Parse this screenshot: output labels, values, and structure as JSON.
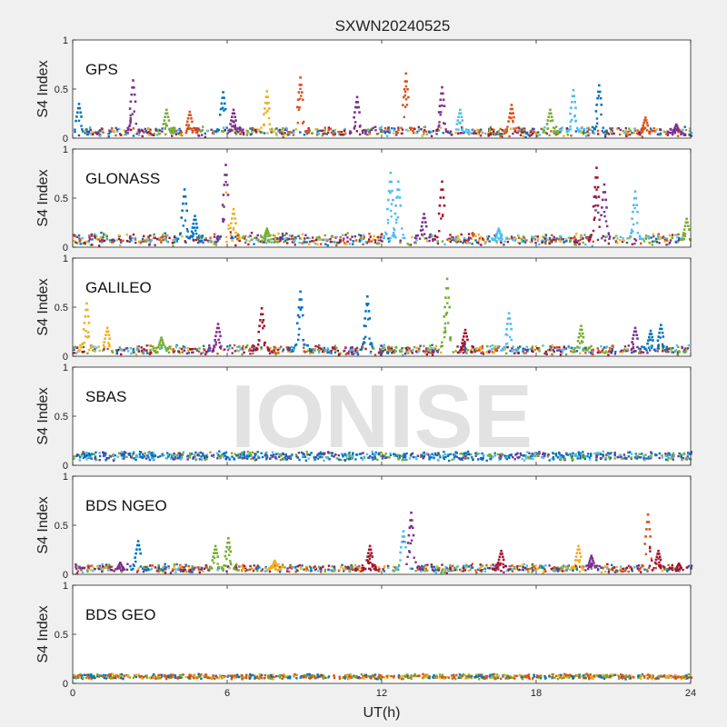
{
  "figure": {
    "title": "SXWN20240525",
    "watermark": "IONISE",
    "xlabel": "UT(h)",
    "xticks": [
      "0",
      "6",
      "12",
      "18",
      "24"
    ],
    "ylabel": "S4 Index"
  },
  "chart_data": [
    {
      "type": "scatter",
      "panel": "GPS",
      "xlim": [
        0,
        24
      ],
      "ylim": [
        0,
        1
      ],
      "ylabel": "S4 Index",
      "yticks": [
        "0",
        "0.5",
        "1"
      ],
      "baseline": [
        0.04,
        0.11
      ],
      "noise": 0.04,
      "spikes": [
        [
          0.2,
          0.36,
          0
        ],
        [
          2.3,
          0.6,
          3
        ],
        [
          3.6,
          0.3,
          4
        ],
        [
          4.5,
          0.28,
          1
        ],
        [
          5.8,
          0.48,
          0
        ],
        [
          6.2,
          0.3,
          3
        ],
        [
          7.5,
          0.49,
          2
        ],
        [
          8.8,
          0.63,
          1
        ],
        [
          11.0,
          0.43,
          3
        ],
        [
          12.9,
          0.67,
          1
        ],
        [
          14.3,
          0.53,
          3
        ],
        [
          15.0,
          0.3,
          5
        ],
        [
          17.0,
          0.35,
          1
        ],
        [
          18.5,
          0.3,
          4
        ],
        [
          19.4,
          0.5,
          5
        ],
        [
          20.4,
          0.55,
          0
        ],
        [
          22.2,
          0.22,
          1
        ],
        [
          23.4,
          0.15,
          3
        ]
      ],
      "colors": [
        "#0072BD",
        "#D95319",
        "#EDB120",
        "#7E2F8E",
        "#77AC30",
        "#4DBEEE",
        "#A2142F"
      ]
    },
    {
      "type": "scatter",
      "panel": "GLONASS",
      "xlim": [
        0,
        24
      ],
      "ylim": [
        0,
        1
      ],
      "ylabel": "S4 Index",
      "yticks": [
        "0",
        "0.5",
        "1"
      ],
      "baseline": [
        0.05,
        0.13
      ],
      "noise": 0.06,
      "spikes": [
        [
          4.3,
          0.6,
          0
        ],
        [
          4.7,
          0.33,
          0
        ],
        [
          5.9,
          0.85,
          3
        ],
        [
          6.2,
          0.4,
          2
        ],
        [
          7.5,
          0.2,
          4
        ],
        [
          12.3,
          0.77,
          5
        ],
        [
          12.6,
          0.68,
          5
        ],
        [
          13.6,
          0.35,
          3
        ],
        [
          14.3,
          0.68,
          6
        ],
        [
          16.5,
          0.2,
          5
        ],
        [
          20.3,
          0.82,
          6
        ],
        [
          20.6,
          0.65,
          3
        ],
        [
          21.8,
          0.58,
          5
        ],
        [
          23.8,
          0.3,
          4
        ]
      ],
      "colors": [
        "#0072BD",
        "#D95319",
        "#EDB120",
        "#7E2F8E",
        "#77AC30",
        "#4DBEEE",
        "#A2142F"
      ]
    },
    {
      "type": "scatter",
      "panel": "GALILEO",
      "xlim": [
        0,
        24
      ],
      "ylim": [
        0,
        1
      ],
      "ylabel": "S4 Index",
      "yticks": [
        "0",
        "0.5",
        "1"
      ],
      "baseline": [
        0.04,
        0.11
      ],
      "noise": 0.04,
      "spikes": [
        [
          0.5,
          0.55,
          2
        ],
        [
          1.3,
          0.3,
          2
        ],
        [
          3.4,
          0.2,
          4
        ],
        [
          5.6,
          0.34,
          3
        ],
        [
          7.3,
          0.5,
          6
        ],
        [
          8.8,
          0.67,
          0
        ],
        [
          11.4,
          0.62,
          0
        ],
        [
          14.5,
          0.8,
          4
        ],
        [
          15.2,
          0.28,
          6
        ],
        [
          16.9,
          0.45,
          5
        ],
        [
          19.7,
          0.32,
          4
        ],
        [
          21.8,
          0.3,
          3
        ],
        [
          22.4,
          0.27,
          0
        ],
        [
          22.8,
          0.33,
          0
        ]
      ],
      "colors": [
        "#0072BD",
        "#D95319",
        "#EDB120",
        "#7E2F8E",
        "#77AC30",
        "#4DBEEE",
        "#A2142F"
      ]
    },
    {
      "type": "scatter",
      "panel": "SBAS",
      "xlim": [
        0,
        24
      ],
      "ylim": [
        0,
        1
      ],
      "ylabel": "S4 Index",
      "yticks": [
        "0",
        "0.5",
        "1"
      ],
      "baseline": [
        0.07,
        0.14
      ],
      "noise": 0.03,
      "spikes": [],
      "colors": [
        "#0072BD",
        "#4DBEEE",
        "#7E2F8E",
        "#77AC30",
        "#0072BD"
      ]
    },
    {
      "type": "scatter",
      "panel": "BDS NGEO",
      "xlim": [
        0,
        24
      ],
      "ylim": [
        0,
        1
      ],
      "ylabel": "S4 Index",
      "yticks": [
        "0",
        "0.5",
        "1"
      ],
      "baseline": [
        0.04,
        0.1
      ],
      "noise": 0.04,
      "spikes": [
        [
          1.8,
          0.13,
          3
        ],
        [
          2.5,
          0.35,
          0
        ],
        [
          5.5,
          0.3,
          4
        ],
        [
          6.0,
          0.38,
          4
        ],
        [
          7.8,
          0.15,
          2
        ],
        [
          11.5,
          0.3,
          6
        ],
        [
          12.8,
          0.45,
          5
        ],
        [
          13.1,
          0.64,
          3
        ],
        [
          16.6,
          0.25,
          6
        ],
        [
          19.6,
          0.3,
          2
        ],
        [
          20.1,
          0.2,
          3
        ],
        [
          22.3,
          0.62,
          1
        ],
        [
          22.7,
          0.25,
          6
        ],
        [
          23.5,
          0.12,
          6
        ]
      ],
      "colors": [
        "#0072BD",
        "#D95319",
        "#EDB120",
        "#7E2F8E",
        "#77AC30",
        "#4DBEEE",
        "#A2142F"
      ]
    },
    {
      "type": "scatter",
      "panel": "BDS GEO",
      "xlim": [
        0,
        24
      ],
      "ylim": [
        0,
        1
      ],
      "ylabel": "S4 Index",
      "yticks": [
        "0",
        "0.5",
        "1"
      ],
      "baseline": [
        0.06,
        0.1
      ],
      "noise": 0.015,
      "spikes": [],
      "colors": [
        "#EDB120",
        "#D95319",
        "#0072BD",
        "#77AC30",
        "#D95319"
      ]
    }
  ]
}
